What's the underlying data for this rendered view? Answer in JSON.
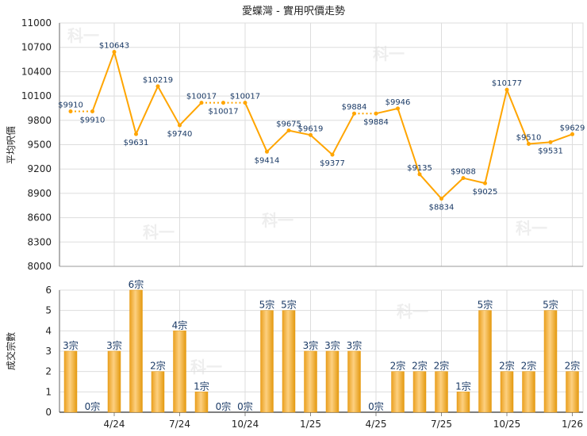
{
  "chart_data": [
    {
      "type": "line",
      "title": "愛蝶灣 - 實用呎價走勢",
      "ylabel": "平均呎價",
      "ylim": [
        8000,
        11000
      ],
      "yticks": [
        8000,
        8300,
        8600,
        8900,
        9200,
        9500,
        9800,
        10100,
        10400,
        10700,
        11000
      ],
      "grid": true,
      "colors": {
        "line": "#ffa500",
        "label": "#1a3a66"
      },
      "values": [
        9910,
        9910,
        10643,
        9631,
        10219,
        9740,
        10017,
        10017,
        10017,
        9414,
        9675,
        9619,
        9377,
        9884,
        9884,
        9946,
        9135,
        8834,
        9088,
        9025,
        10177,
        9510,
        9531,
        9629
      ],
      "label_prefix": "$",
      "dotted_where_no_transactions": true
    },
    {
      "type": "bar",
      "ylabel": "成交宗數",
      "ylim": [
        0,
        6
      ],
      "yticks": [
        0,
        1,
        2,
        3,
        4,
        5,
        6
      ],
      "grid": true,
      "colors": {
        "bar": "#f5b030",
        "label": "#1a3a66"
      },
      "values": [
        3,
        0,
        3,
        6,
        2,
        4,
        1,
        0,
        0,
        5,
        5,
        3,
        3,
        3,
        0,
        2,
        2,
        2,
        1,
        5,
        2,
        2,
        5,
        2
      ],
      "label_suffix": "宗",
      "xticks": [
        {
          "index": 2,
          "label": "4/24"
        },
        {
          "index": 5,
          "label": "7/24"
        },
        {
          "index": 8,
          "label": "10/24"
        },
        {
          "index": 11,
          "label": "1/25"
        },
        {
          "index": 14,
          "label": "4/25"
        },
        {
          "index": 17,
          "label": "7/25"
        },
        {
          "index": 20,
          "label": "10/25"
        },
        {
          "index": 23,
          "label": "1/26"
        }
      ]
    }
  ],
  "watermark": "科一"
}
